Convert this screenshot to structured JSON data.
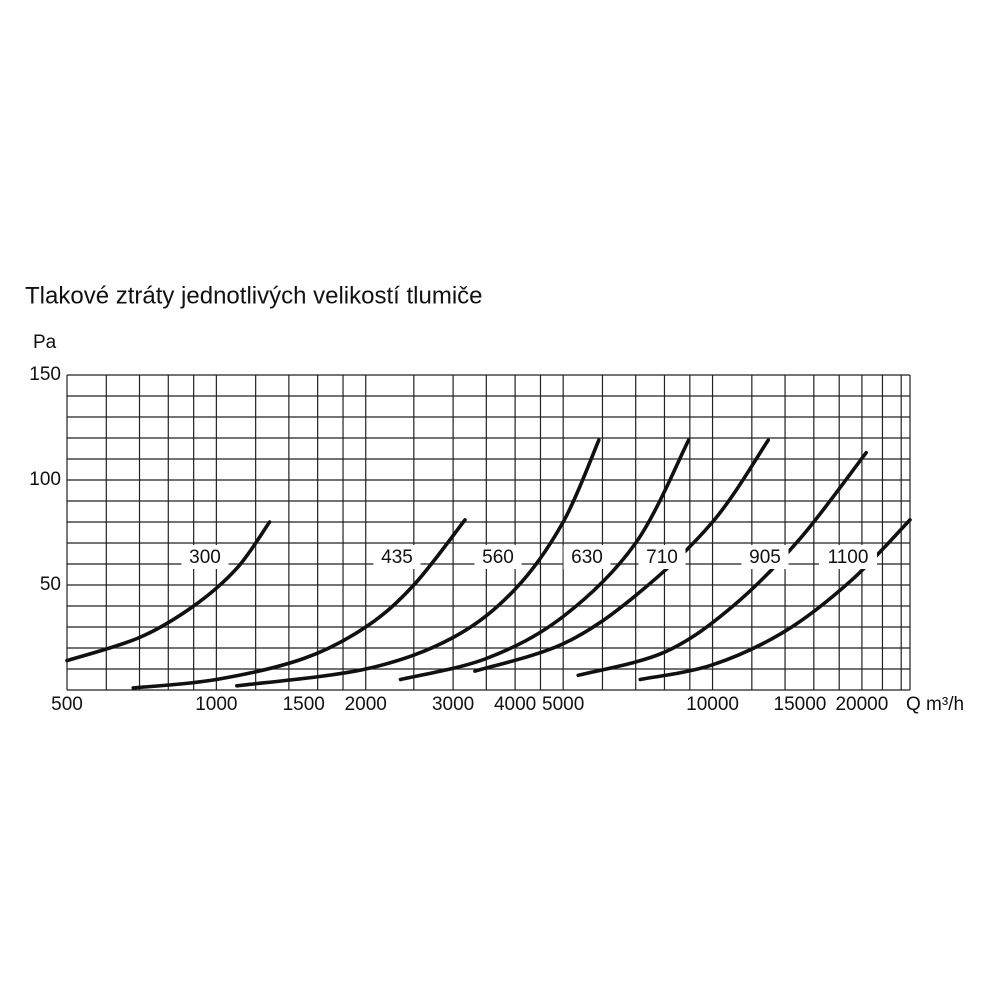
{
  "chart_data": {
    "type": "line",
    "title": "Tlakové ztráty jednotlivých velikostí tlumiče",
    "y_label": "Pa",
    "x_label": "Q m³/h",
    "x_scale": "log",
    "xlim": [
      500,
      25000
    ],
    "ylim": [
      0,
      150
    ],
    "xticks": [
      500,
      1000,
      1500,
      2000,
      3000,
      4000,
      5000,
      10000,
      15000,
      20000
    ],
    "yticks": [
      50,
      100,
      150
    ],
    "grid": true,
    "xgrid": [
      500,
      600,
      700,
      800,
      900,
      1000,
      1200,
      1400,
      1600,
      1800,
      2000,
      2500,
      3000,
      3500,
      4000,
      4500,
      5000,
      6000,
      7000,
      8000,
      9000,
      10000,
      12000,
      14000,
      16000,
      18000,
      20000,
      22000,
      24000
    ],
    "ygrid": [
      0,
      10,
      20,
      30,
      40,
      50,
      60,
      70,
      80,
      90,
      100,
      110,
      120,
      130,
      140,
      150
    ],
    "series": [
      {
        "name": "300",
        "color": "#111111",
        "x": [
          500,
          700,
          900,
          1100,
          1280
        ],
        "values": [
          14,
          25,
          40,
          58,
          80
        ]
      },
      {
        "name": "435",
        "color": "#111111",
        "x": [
          680,
          1000,
          1500,
          2000,
          2500,
          3170
        ],
        "values": [
          1,
          5,
          15,
          30,
          50,
          81
        ]
      },
      {
        "name": "560",
        "color": "#111111",
        "x": [
          1100,
          2000,
          3000,
          4000,
          5000,
          5900
        ],
        "values": [
          2,
          10,
          25,
          48,
          80,
          119
        ]
      },
      {
        "name": "630",
        "color": "#111111",
        "x": [
          2350,
          3500,
          5000,
          7000,
          8950
        ],
        "values": [
          5,
          15,
          35,
          70,
          119
        ]
      },
      {
        "name": "710",
        "color": "#111111",
        "x": [
          3320,
          5000,
          7000,
          10000,
          12950
        ],
        "values": [
          9,
          22,
          45,
          80,
          119
        ]
      },
      {
        "name": "905",
        "color": "#111111",
        "x": [
          5360,
          8000,
          11000,
          15000,
          20400
        ],
        "values": [
          7,
          18,
          40,
          72,
          113
        ]
      },
      {
        "name": "1100",
        "color": "#111111",
        "x": [
          7150,
          10000,
          14000,
          19000,
          25000
        ],
        "values": [
          5,
          12,
          28,
          52,
          81
        ]
      }
    ]
  }
}
